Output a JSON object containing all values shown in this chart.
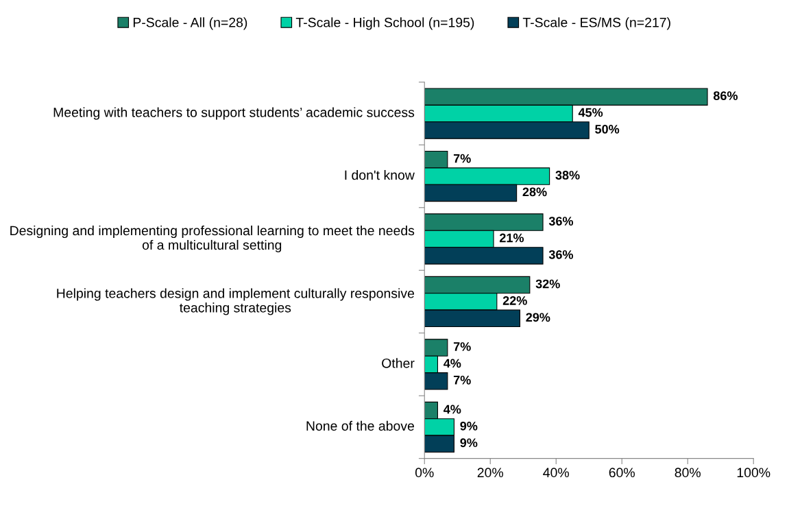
{
  "chart_data": {
    "type": "bar",
    "orientation": "horizontal",
    "categories": [
      "Meeting with teachers to support students’ academic success",
      "I don't know",
      "Designing and implementing professional learning to meet the needs of a multicultural setting",
      "Helping teachers design and implement culturally responsive teaching strategies",
      "Other",
      "None of the above"
    ],
    "series": [
      {
        "name": "P-Scale - All (n=28)",
        "color": "#1b8068",
        "values": [
          86,
          7,
          36,
          32,
          7,
          4
        ],
        "value_labels": [
          "86%",
          "7%",
          "36%",
          "32%",
          "7%",
          "4%"
        ]
      },
      {
        "name": "T-Scale - High School (n=195)",
        "color": "#00d2a6",
        "values": [
          45,
          38,
          21,
          22,
          4,
          9
        ],
        "value_labels": [
          "45%",
          "38%",
          "21%",
          "22%",
          "4%",
          "9%"
        ]
      },
      {
        "name": "T-Scale - ES/MS (n=217)",
        "color": "#023f58",
        "values": [
          50,
          28,
          36,
          29,
          7,
          9
        ],
        "value_labels": [
          "50%",
          "28%",
          "36%",
          "29%",
          "7%",
          "9%"
        ]
      }
    ],
    "xlim": [
      0,
      100
    ],
    "xticks": [
      {
        "value": 0,
        "label": "0%"
      },
      {
        "value": 20,
        "label": "20%"
      },
      {
        "value": 40,
        "label": "40%"
      },
      {
        "value": 60,
        "label": "60%"
      },
      {
        "value": 80,
        "label": "80%"
      },
      {
        "value": 100,
        "label": "100%"
      }
    ],
    "legend": "top",
    "grid": false
  }
}
